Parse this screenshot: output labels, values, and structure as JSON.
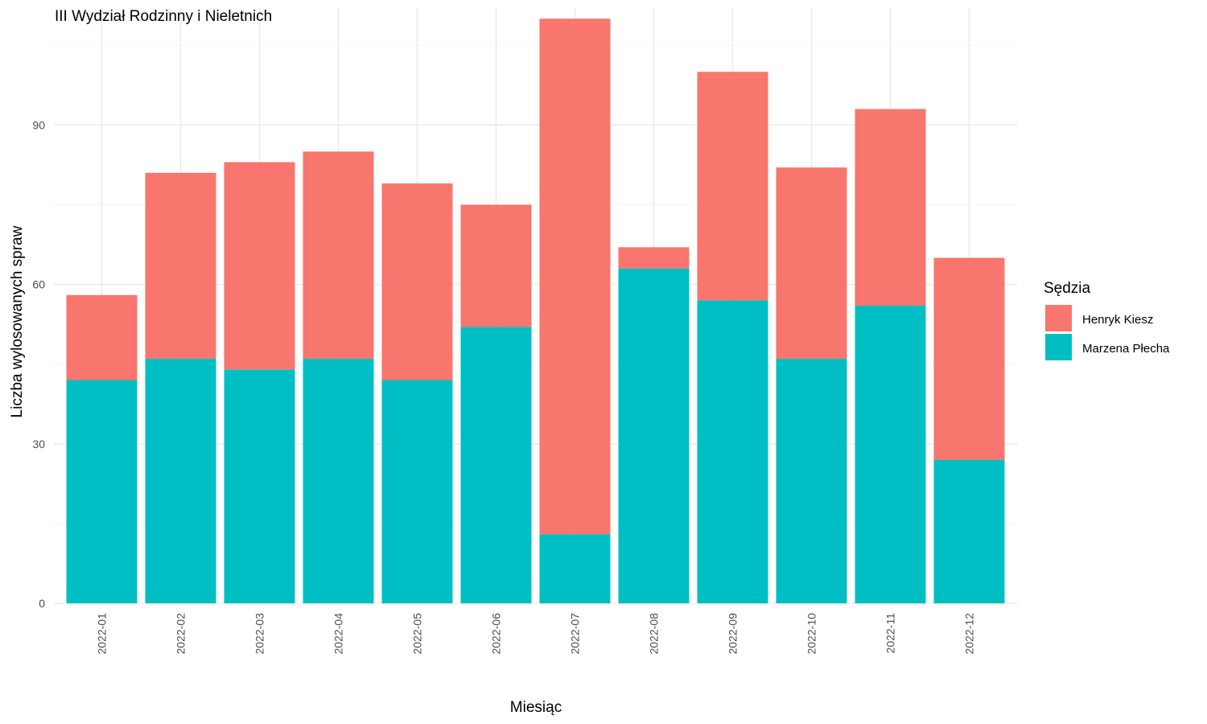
{
  "chart_data": {
    "type": "bar",
    "stacked": true,
    "title": "III Wydział Rodzinny i Nieletnich",
    "xlabel": "Miesiąc",
    "ylabel": "Liczba wylosowanych spraw",
    "categories": [
      "2022-01",
      "2022-02",
      "2022-03",
      "2022-04",
      "2022-05",
      "2022-06",
      "2022-07",
      "2022-08",
      "2022-09",
      "2022-10",
      "2022-11",
      "2022-12"
    ],
    "series": [
      {
        "name": "Marzena Płecha",
        "color": "#00BFC4",
        "values": [
          42,
          46,
          44,
          46,
          42,
          52,
          13,
          63,
          57,
          46,
          56,
          27
        ]
      },
      {
        "name": "Henryk Kiesz",
        "color": "#F8766D",
        "values": [
          16,
          35,
          39,
          39,
          37,
          23,
          97,
          4,
          43,
          36,
          37,
          38
        ]
      }
    ],
    "ylim": [
      0,
      112
    ],
    "yticks": [
      0,
      30,
      60,
      90
    ],
    "grid": true,
    "legend": {
      "title": "Sędzia",
      "position": "right",
      "entries": [
        "Henryk Kiesz",
        "Marzena Płecha"
      ]
    }
  }
}
